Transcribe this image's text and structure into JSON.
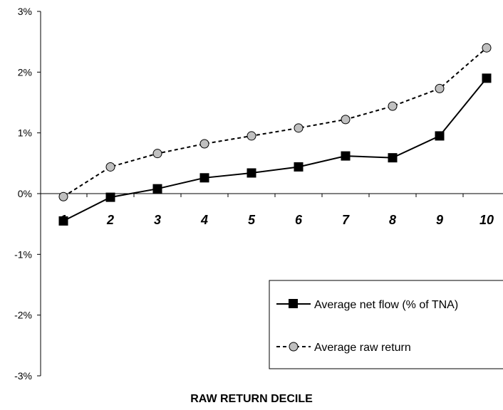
{
  "chart_data": {
    "type": "line",
    "title": "",
    "xlabel": "RAW RETURN DECILE",
    "ylabel": "",
    "categories": [
      "1",
      "2",
      "3",
      "4",
      "5",
      "6",
      "7",
      "8",
      "9",
      "10"
    ],
    "ylim": [
      -3,
      3
    ],
    "yticks": [
      3,
      2,
      1,
      0,
      -1,
      -2,
      -3
    ],
    "ytick_labels": [
      "3%",
      "2%",
      "1%",
      "0%",
      "-1%",
      "-2%",
      "-3%"
    ],
    "grid": false,
    "legend_position": "bottom-right",
    "series": [
      {
        "name": "Average net flow (% of TNA)",
        "values": [
          -0.45,
          -0.06,
          0.08,
          0.26,
          0.34,
          0.44,
          0.62,
          0.59,
          0.95,
          1.9
        ],
        "style": "solid",
        "marker": "square",
        "color": "#000000"
      },
      {
        "name": "Average raw return",
        "values": [
          -0.05,
          0.44,
          0.66,
          0.82,
          0.95,
          1.08,
          1.22,
          1.44,
          1.73,
          2.4
        ],
        "style": "dashed",
        "marker": "circle",
        "color": "#000000",
        "marker_fill": "#c0c0c0"
      }
    ]
  }
}
